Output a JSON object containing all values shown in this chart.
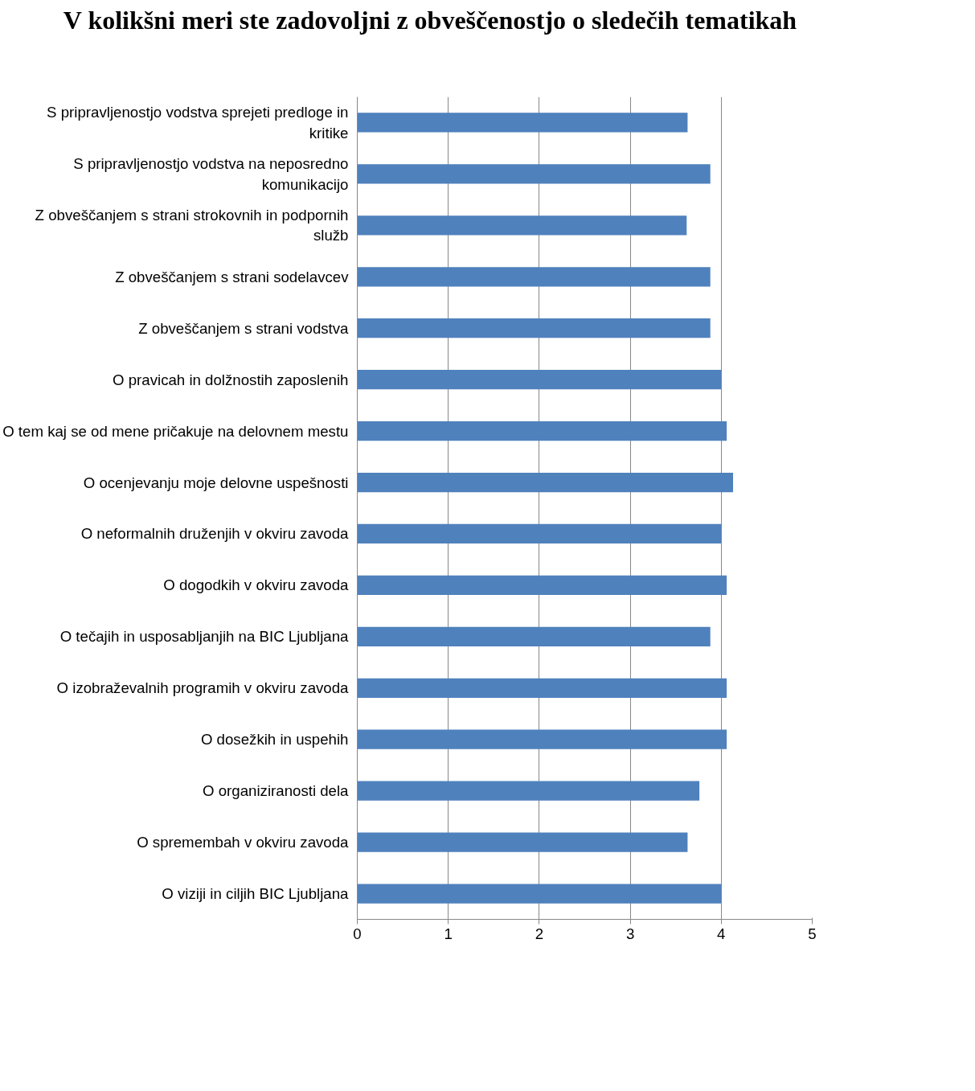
{
  "chart_data": {
    "type": "bar",
    "orientation": "horizontal",
    "title": "V kolikšni meri ste zadovoljni z obveščenostjo o sledečih tematikah",
    "categories": [
      "S pripravljenostjo vodstva sprejeti predloge in kritike",
      "S pripravljenostjo vodstva na neposredno komunikacijo",
      "Z obveščanjem s strani strokovnih in podpornih služb",
      "Z obveščanjem s strani sodelavcev",
      "Z obveščanjem s strani vodstva",
      "O pravicah in dolžnostih zaposlenih",
      "O tem kaj se od mene pričakuje na delovnem mestu",
      "O ocenjevanju moje delovne uspešnosti",
      "O neformalnih druženjih v okviru zavoda",
      "O dogodkih v okviru zavoda",
      "O tečajih in usposabljanjih na BIC Ljubljana",
      "O izobraževalnih programih v okviru zavoda",
      "O dosežkih in uspehih",
      "O organiziranosti dela",
      "O spremembah v okviru zavoda",
      "O viziji in ciljih BIC Ljubljana"
    ],
    "values": [
      3.63,
      3.88,
      3.62,
      3.88,
      3.88,
      4.0,
      4.06,
      4.13,
      4.0,
      4.06,
      3.88,
      4.06,
      4.06,
      3.76,
      3.63,
      4.0
    ],
    "color": "#4f81bd",
    "xlim": [
      0,
      5
    ],
    "xticks": [
      0,
      1,
      2,
      3,
      4,
      5
    ],
    "grid": "x"
  }
}
